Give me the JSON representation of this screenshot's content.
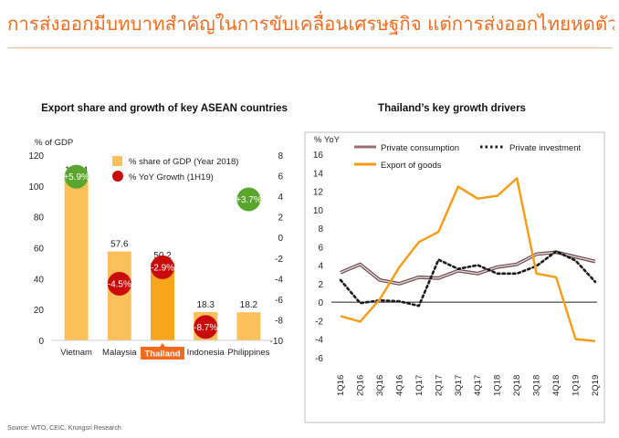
{
  "page": {
    "headline": "การส่งออกมีบทบาทสำคัญในการขับเคลื่อนเศรษฐกิจ แต่การส่งออกไทยหดตัวในปีนี้",
    "source": "Source: WTO, CEIC, Krungsri Research"
  },
  "colors": {
    "headline": "#f26b1d",
    "bar": "#fcc05a",
    "bar_selected": "#f7a51c",
    "bubble_positive": "#5aa52e",
    "bubble_negative": "#c90b0b",
    "private_consumption": "#9a6c72",
    "private_investment": "#1a1a1a",
    "export_of_goods": "#f79a14",
    "highlight_tab": "#f26b1d"
  },
  "chart_data": [
    {
      "type": "bar",
      "title": "Export share and growth of key ASEAN countries",
      "ylabel": "% of GDP",
      "ylim": [
        0,
        120
      ],
      "yticks": [
        0,
        20,
        40,
        60,
        80,
        100,
        120
      ],
      "y2lim": [
        -10,
        8
      ],
      "y2ticks": [
        8,
        6,
        4,
        2,
        0,
        -2,
        -4,
        -6,
        -8,
        -10
      ],
      "categories": [
        "Vietnam",
        "Malaysia",
        "Thailand",
        "Indonesia",
        "Philippines"
      ],
      "highlight": "Thailand",
      "series": [
        {
          "name": "% share of GDP (Year 2018)",
          "kind": "bar",
          "axis": "left",
          "values": [
            105.4,
            57.6,
            50.2,
            18.3,
            18.2
          ],
          "labels": [
            "105.4",
            "57.6",
            "50.2",
            "18.3",
            "18.2"
          ]
        },
        {
          "name": "% YoY Growth (1H19)",
          "kind": "bubble",
          "axis": "right",
          "values": [
            5.9,
            -4.5,
            -2.9,
            -8.7,
            3.7
          ],
          "labels": [
            "+5.9%",
            "-4.5%",
            "-2.9%",
            "-8.7%",
            "+3.7%"
          ]
        }
      ],
      "legend": "top-right"
    },
    {
      "type": "line",
      "title": "Thailand’s key growth drivers",
      "ylabel": "% YoY",
      "ylim": [
        -6,
        16
      ],
      "yticks": [
        16,
        14,
        12,
        10,
        8,
        6,
        4,
        2,
        0,
        -2,
        -4,
        -6
      ],
      "categories": [
        "1Q16",
        "2Q16",
        "3Q16",
        "4Q16",
        "1Q17",
        "2Q17",
        "3Q17",
        "4Q17",
        "1Q18",
        "2Q18",
        "3Q18",
        "4Q18",
        "1Q19",
        "2Q19"
      ],
      "series": [
        {
          "name": "Private consumption",
          "style": "solid",
          "values": [
            3.2,
            4.1,
            2.4,
            2.0,
            2.7,
            2.6,
            3.4,
            3.1,
            3.8,
            4.1,
            5.2,
            5.4,
            4.9,
            4.4
          ]
        },
        {
          "name": "Private investment",
          "style": "dotted",
          "values": [
            2.4,
            -0.1,
            0.2,
            0.1,
            -0.4,
            4.6,
            3.6,
            4.0,
            3.1,
            3.1,
            3.9,
            5.5,
            4.5,
            2.2
          ]
        },
        {
          "name": "Export of goods",
          "style": "solid",
          "values": [
            -1.5,
            -2.1,
            0.3,
            3.8,
            6.5,
            7.6,
            12.5,
            11.2,
            11.5,
            13.4,
            3.1,
            2.7,
            -4.0,
            -4.2
          ]
        }
      ],
      "legend": "top"
    }
  ]
}
